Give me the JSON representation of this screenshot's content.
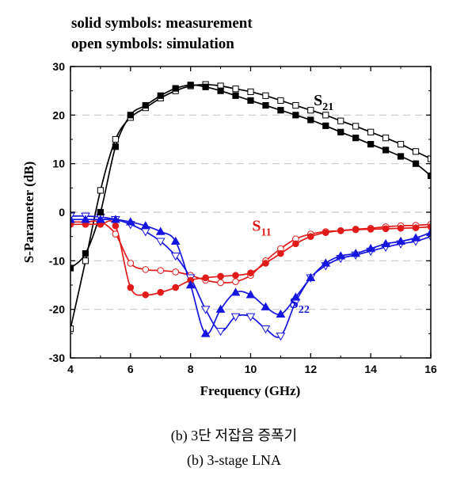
{
  "notes": {
    "line1": "solid symbols: measurement",
    "line2": "open symbols: simulation"
  },
  "captions": {
    "korean": "(b) 3단 저잡음 증폭기",
    "english": "(b) 3-stage LNA"
  },
  "chart_data": {
    "type": "line",
    "xlabel": "Frequency (GHz)",
    "ylabel": "S-Parameter (dB)",
    "xlim": [
      4,
      16
    ],
    "ylim": [
      -30,
      30
    ],
    "xticks": [
      4,
      6,
      8,
      10,
      12,
      14,
      16
    ],
    "yticks": [
      -30,
      -20,
      -10,
      0,
      10,
      20,
      30
    ],
    "grid": "horizontal dashed",
    "series": [
      {
        "name": "S21 measurement",
        "label_base": "S",
        "label_sub": "21",
        "label_pos": [
          12.1,
          22
        ],
        "label_color": "#000000",
        "color": "#000000",
        "marker": "square",
        "filled": true,
        "points": [
          [
            4.0,
            -11.5
          ],
          [
            4.5,
            -8.5
          ],
          [
            5.0,
            0
          ],
          [
            5.5,
            13.5
          ],
          [
            6.0,
            20.0
          ],
          [
            6.5,
            22.0
          ],
          [
            7.0,
            24.0
          ],
          [
            7.5,
            25.5
          ],
          [
            8.0,
            26.2
          ],
          [
            8.5,
            25.8
          ],
          [
            9.0,
            25.0
          ],
          [
            9.5,
            24.0
          ],
          [
            10.0,
            23.0
          ],
          [
            10.5,
            22.0
          ],
          [
            11.0,
            21.0
          ],
          [
            11.5,
            20.0
          ],
          [
            12.0,
            19.0
          ],
          [
            12.5,
            17.8
          ],
          [
            13.0,
            16.5
          ],
          [
            13.5,
            15.3
          ],
          [
            14.0,
            14.0
          ],
          [
            14.5,
            12.8
          ],
          [
            15.0,
            11.5
          ],
          [
            15.5,
            10.0
          ],
          [
            16.0,
            7.5
          ]
        ]
      },
      {
        "name": "S21 simulation",
        "color": "#000000",
        "marker": "square",
        "filled": false,
        "points": [
          [
            4.0,
            -24.0
          ],
          [
            4.5,
            -10.0
          ],
          [
            5.0,
            4.5
          ],
          [
            5.5,
            15.0
          ],
          [
            6.0,
            19.5
          ],
          [
            6.5,
            21.5
          ],
          [
            7.0,
            23.5
          ],
          [
            7.5,
            25.0
          ],
          [
            8.0,
            26.0
          ],
          [
            8.5,
            26.3
          ],
          [
            9.0,
            26.0
          ],
          [
            9.5,
            25.4
          ],
          [
            10.0,
            24.8
          ],
          [
            10.5,
            24.0
          ],
          [
            11.0,
            23.0
          ],
          [
            11.5,
            22.0
          ],
          [
            12.0,
            21.0
          ],
          [
            12.5,
            20.0
          ],
          [
            13.0,
            18.8
          ],
          [
            13.5,
            17.7
          ],
          [
            14.0,
            16.5
          ],
          [
            14.5,
            15.3
          ],
          [
            15.0,
            14.0
          ],
          [
            15.5,
            12.5
          ],
          [
            16.0,
            11.0
          ]
        ]
      },
      {
        "name": "S11 measurement",
        "label_base": "S",
        "label_sub": "11",
        "label_pos": [
          10.05,
          -3.8
        ],
        "label_color": "#e11a1a",
        "color": "#e11a1a",
        "marker": "circle",
        "filled": true,
        "points": [
          [
            4.0,
            -2.5
          ],
          [
            4.5,
            -2.5
          ],
          [
            5.0,
            -2.5
          ],
          [
            5.5,
            -2.8
          ],
          [
            6.0,
            -15.5
          ],
          [
            6.5,
            -17.0
          ],
          [
            7.0,
            -16.5
          ],
          [
            7.5,
            -15.5
          ],
          [
            8.0,
            -14.0
          ],
          [
            8.5,
            -13.5
          ],
          [
            9.0,
            -13.2
          ],
          [
            9.5,
            -13.0
          ],
          [
            10.0,
            -12.5
          ],
          [
            10.5,
            -10.5
          ],
          [
            11.0,
            -8.5
          ],
          [
            11.5,
            -6.5
          ],
          [
            12.0,
            -5.0
          ],
          [
            12.5,
            -4.2
          ],
          [
            13.0,
            -3.8
          ],
          [
            13.5,
            -3.6
          ],
          [
            14.0,
            -3.5
          ],
          [
            14.5,
            -3.4
          ],
          [
            15.0,
            -3.3
          ],
          [
            15.5,
            -3.2
          ],
          [
            16.0,
            -3.0
          ]
        ]
      },
      {
        "name": "S11 simulation",
        "color": "#e11a1a",
        "marker": "circle",
        "filled": false,
        "points": [
          [
            4.0,
            -2.0
          ],
          [
            4.5,
            -2.0
          ],
          [
            5.0,
            -2.0
          ],
          [
            5.5,
            -4.5
          ],
          [
            6.0,
            -10.5
          ],
          [
            6.5,
            -11.8
          ],
          [
            7.0,
            -12.0
          ],
          [
            7.5,
            -12.3
          ],
          [
            8.0,
            -13.0
          ],
          [
            8.5,
            -14.0
          ],
          [
            9.0,
            -14.5
          ],
          [
            9.5,
            -14.3
          ],
          [
            10.0,
            -13.0
          ],
          [
            10.5,
            -10.0
          ],
          [
            11.0,
            -7.5
          ],
          [
            11.5,
            -5.5
          ],
          [
            12.0,
            -4.5
          ],
          [
            12.5,
            -4.0
          ],
          [
            13.0,
            -3.8
          ],
          [
            13.5,
            -3.5
          ],
          [
            14.0,
            -3.3
          ],
          [
            14.5,
            -3.0
          ],
          [
            15.0,
            -2.8
          ],
          [
            15.5,
            -2.7
          ],
          [
            16.0,
            -2.5
          ]
        ]
      },
      {
        "name": "S22 measurement",
        "label_base": "S",
        "label_sub": "22",
        "label_pos": [
          11.3,
          -19.7
        ],
        "label_color": "#1515e0",
        "color": "#1515e0",
        "marker": "triangle-up",
        "filled": true,
        "points": [
          [
            4.0,
            -1.5
          ],
          [
            4.5,
            -1.5
          ],
          [
            5.0,
            -1.5
          ],
          [
            5.5,
            -1.5
          ],
          [
            6.0,
            -2.0
          ],
          [
            6.5,
            -2.8
          ],
          [
            7.0,
            -4.0
          ],
          [
            7.5,
            -6.0
          ],
          [
            8.0,
            -15.0
          ],
          [
            8.5,
            -25.0
          ],
          [
            9.0,
            -20.0
          ],
          [
            9.5,
            -16.5
          ],
          [
            10.0,
            -17.0
          ],
          [
            10.5,
            -19.5
          ],
          [
            11.0,
            -21.0
          ],
          [
            11.5,
            -17.5
          ],
          [
            12.0,
            -13.5
          ],
          [
            12.5,
            -10.5
          ],
          [
            13.0,
            -9.0
          ],
          [
            13.5,
            -8.5
          ],
          [
            14.0,
            -7.5
          ],
          [
            14.5,
            -6.5
          ],
          [
            15.0,
            -6.0
          ],
          [
            15.5,
            -5.3
          ],
          [
            16.0,
            -4.2
          ]
        ]
      },
      {
        "name": "S22 simulation",
        "color": "#1515e0",
        "marker": "triangle-down",
        "filled": false,
        "points": [
          [
            4.0,
            -0.8
          ],
          [
            4.5,
            -0.8
          ],
          [
            5.0,
            -1.0
          ],
          [
            5.5,
            -1.5
          ],
          [
            6.0,
            -2.5
          ],
          [
            6.5,
            -4.0
          ],
          [
            7.0,
            -6.0
          ],
          [
            7.5,
            -9.0
          ],
          [
            8.0,
            -13.5
          ],
          [
            8.5,
            -20.0
          ],
          [
            9.0,
            -24.5
          ],
          [
            9.5,
            -21.5
          ],
          [
            10.0,
            -21.5
          ],
          [
            10.5,
            -24.0
          ],
          [
            11.0,
            -25.5
          ],
          [
            11.5,
            -18.5
          ],
          [
            12.0,
            -13.5
          ],
          [
            12.5,
            -11.0
          ],
          [
            13.0,
            -9.5
          ],
          [
            13.5,
            -8.8
          ],
          [
            14.0,
            -8.0
          ],
          [
            14.5,
            -7.2
          ],
          [
            15.0,
            -6.5
          ],
          [
            15.5,
            -6.0
          ],
          [
            16.0,
            -5.0
          ]
        ]
      }
    ]
  }
}
